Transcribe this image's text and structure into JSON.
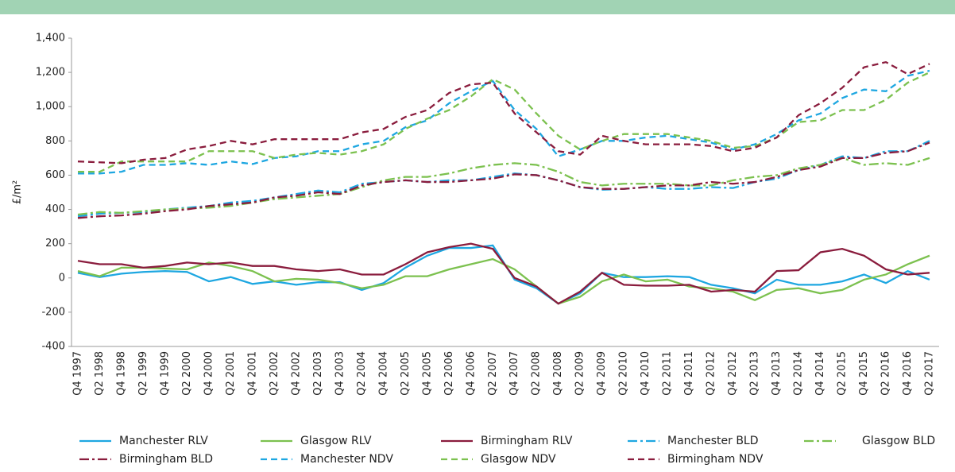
{
  "chart_data": {
    "type": "line",
    "y_label": "£/m²",
    "categories": [
      "Q4 1997",
      "Q2 1998",
      "Q4 1998",
      "Q2 1999",
      "Q4 1999",
      "Q2 2000",
      "Q4 2000",
      "Q2 2001",
      "Q4 2001",
      "Q2 2002",
      "Q4 2002",
      "Q2 2003",
      "Q4 2003",
      "Q2 2004",
      "Q4 2004",
      "Q2 2005",
      "Q4 2005",
      "Q2 2006",
      "Q4 2006",
      "Q2 2007",
      "Q4 2007",
      "Q2 2008",
      "Q4 2008",
      "Q2 2009",
      "Q4 2009",
      "Q2 2010",
      "Q4 2010",
      "Q2 2011",
      "Q4 2011",
      "Q2 2012",
      "Q4 2012",
      "Q2 2013",
      "Q4 2013",
      "Q2 2014",
      "Q4 2014",
      "Q2 2015",
      "Q4 2015",
      "Q2 2016",
      "Q4 2016",
      "Q2 2017"
    ],
    "ylim": [
      -400,
      1400
    ],
    "yticks": [
      -400,
      -200,
      0,
      200,
      400,
      600,
      800,
      {
        "value": 1000,
        "label": "1,000"
      },
      {
        "value": 1200,
        "label": "1,200"
      },
      {
        "value": 1400,
        "label": "1,400"
      }
    ],
    "series": [
      {
        "name": "Manchester RLV",
        "color": "#1ea7e1",
        "style": "solid",
        "values": [
          30,
          5,
          25,
          35,
          40,
          35,
          -20,
          5,
          -35,
          -20,
          -40,
          -25,
          -25,
          -70,
          -30,
          60,
          130,
          175,
          175,
          190,
          -10,
          -60,
          -150,
          -90,
          30,
          5,
          5,
          10,
          5,
          -40,
          -60,
          -90,
          -10,
          -40,
          -40,
          -20,
          20,
          -30,
          40,
          -10
        ]
      },
      {
        "name": "Glasgow RLV",
        "color": "#7cc14f",
        "style": "solid",
        "values": [
          40,
          10,
          60,
          60,
          55,
          50,
          90,
          70,
          40,
          -20,
          -5,
          -10,
          -30,
          -60,
          -40,
          10,
          10,
          50,
          80,
          110,
          50,
          -50,
          -150,
          -110,
          -20,
          20,
          -20,
          -10,
          -50,
          -60,
          -80,
          -130,
          -70,
          -60,
          -90,
          -70,
          -10,
          20,
          80,
          130
        ]
      },
      {
        "name": "Birmingham RLV",
        "color": "#8a1c3d",
        "style": "solid",
        "values": [
          100,
          80,
          80,
          60,
          70,
          90,
          80,
          90,
          70,
          70,
          50,
          40,
          50,
          20,
          20,
          80,
          150,
          180,
          200,
          170,
          0,
          -50,
          -150,
          -80,
          30,
          -40,
          -45,
          -45,
          -40,
          -80,
          -70,
          -80,
          40,
          45,
          150,
          170,
          130,
          50,
          20,
          30
        ]
      },
      {
        "name": "Manchester BLD",
        "color": "#1ea7e1",
        "style": "dashdot",
        "values": [
          360,
          375,
          380,
          385,
          400,
          410,
          420,
          440,
          450,
          470,
          490,
          510,
          500,
          550,
          560,
          570,
          560,
          570,
          570,
          590,
          610,
          600,
          570,
          530,
          515,
          520,
          530,
          520,
          520,
          530,
          525,
          560,
          580,
          630,
          660,
          710,
          700,
          740,
          740,
          800
        ]
      },
      {
        "name": "Glasgow BLD",
        "color": "#7cc14f",
        "style": "dashdot",
        "values": [
          370,
          385,
          380,
          390,
          400,
          405,
          410,
          420,
          440,
          460,
          470,
          480,
          490,
          530,
          570,
          590,
          590,
          610,
          640,
          660,
          670,
          660,
          620,
          560,
          540,
          550,
          550,
          550,
          540,
          540,
          570,
          590,
          600,
          640,
          660,
          700,
          660,
          670,
          660,
          700
        ]
      },
      {
        "name": "Birmingham BLD",
        "color": "#8a1c3d",
        "style": "dashdot",
        "values": [
          350,
          360,
          365,
          375,
          390,
          400,
          420,
          430,
          440,
          470,
          480,
          500,
          490,
          540,
          560,
          570,
          560,
          560,
          570,
          580,
          605,
          600,
          570,
          530,
          520,
          520,
          530,
          540,
          540,
          560,
          550,
          560,
          590,
          630,
          650,
          700,
          700,
          730,
          740,
          790
        ]
      },
      {
        "name": "Manchester NDV",
        "color": "#1ea7e1",
        "style": "dashed",
        "values": [
          610,
          610,
          620,
          660,
          660,
          670,
          660,
          680,
          665,
          700,
          710,
          740,
          740,
          780,
          800,
          880,
          920,
          1020,
          1090,
          1150,
          980,
          870,
          710,
          750,
          800,
          800,
          820,
          830,
          810,
          790,
          750,
          780,
          840,
          920,
          960,
          1050,
          1100,
          1090,
          1180,
          1210
        ]
      },
      {
        "name": "Glasgow NDV",
        "color": "#7cc14f",
        "style": "dashed",
        "values": [
          620,
          620,
          680,
          680,
          680,
          680,
          740,
          740,
          740,
          700,
          720,
          730,
          720,
          740,
          780,
          870,
          930,
          980,
          1060,
          1160,
          1100,
          960,
          830,
          750,
          800,
          840,
          840,
          840,
          820,
          800,
          760,
          770,
          820,
          910,
          920,
          980,
          980,
          1040,
          1140,
          1200
        ]
      },
      {
        "name": "Birmingham NDV",
        "color": "#8a1c3d",
        "style": "dashed",
        "values": [
          680,
          675,
          670,
          690,
          700,
          750,
          770,
          800,
          780,
          810,
          810,
          810,
          810,
          850,
          870,
          940,
          980,
          1080,
          1130,
          1140,
          960,
          850,
          740,
          720,
          830,
          800,
          780,
          780,
          780,
          770,
          740,
          760,
          820,
          950,
          1020,
          1110,
          1230,
          1260,
          1190,
          1250
        ]
      }
    ]
  }
}
